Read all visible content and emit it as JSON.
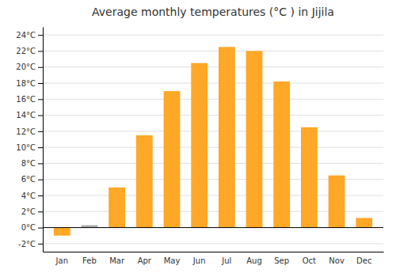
{
  "chart_data": {
    "type": "bar",
    "title": "Average monthly temperatures (°C ) in Jijila",
    "categories": [
      "Jan",
      "Feb",
      "Mar",
      "Apr",
      "May",
      "Jun",
      "Jul",
      "Aug",
      "Sep",
      "Oct",
      "Nov",
      "Dec"
    ],
    "values": [
      -1.0,
      0.3,
      5.0,
      11.5,
      17.0,
      20.5,
      22.5,
      22.0,
      18.2,
      12.5,
      6.5,
      1.2
    ],
    "colors": [
      "#FFA726",
      "#AAAAAA",
      "#FFA726",
      "#FFA726",
      "#FFA726",
      "#FFA726",
      "#FFA726",
      "#FFA726",
      "#FFA726",
      "#FFA726",
      "#FFA726",
      "#FFA726"
    ],
    "ylim": [
      -3,
      25
    ],
    "yticks": [
      {
        "value": -2,
        "label": "-2°C"
      },
      {
        "value": 0,
        "label": "0°C"
      },
      {
        "value": 2,
        "label": "2°C"
      },
      {
        "value": 4,
        "label": "4°C"
      },
      {
        "value": 6,
        "label": "6°C"
      },
      {
        "value": 8,
        "label": "8°C"
      },
      {
        "value": 10,
        "label": "10°C"
      },
      {
        "value": 12,
        "label": "12°C"
      },
      {
        "value": 14,
        "label": "14°C"
      },
      {
        "value": 16,
        "label": "16°C"
      },
      {
        "value": 18,
        "label": "18°C"
      },
      {
        "value": 20,
        "label": "20°C"
      },
      {
        "value": 22,
        "label": "22°C"
      },
      {
        "value": 24,
        "label": "24°C"
      }
    ],
    "grid": true
  }
}
